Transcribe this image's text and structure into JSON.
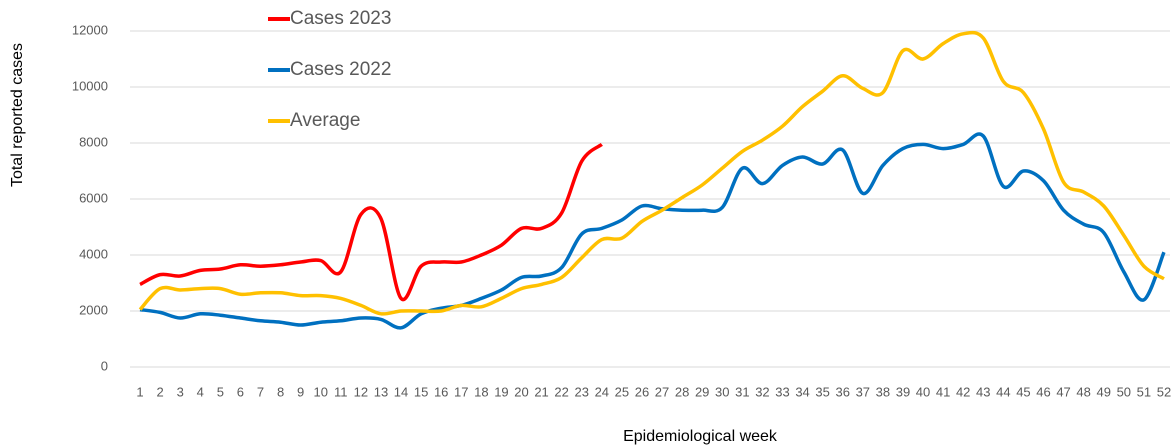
{
  "chart_data": {
    "type": "line",
    "xlabel": "Epidemiological week",
    "ylabel": "Total reported cases",
    "categories": [
      1,
      2,
      3,
      4,
      5,
      6,
      7,
      8,
      9,
      10,
      11,
      12,
      13,
      14,
      15,
      16,
      17,
      18,
      19,
      20,
      21,
      22,
      23,
      24,
      25,
      26,
      27,
      28,
      29,
      30,
      31,
      32,
      33,
      34,
      35,
      36,
      37,
      38,
      39,
      40,
      41,
      42,
      43,
      44,
      45,
      46,
      47,
      48,
      49,
      50,
      51,
      52
    ],
    "series": [
      {
        "name": "Cases 2023",
        "color": "#ff0000",
        "values": [
          2950,
          3300,
          3250,
          3450,
          3500,
          3650,
          3600,
          3650,
          3750,
          3800,
          3400,
          5450,
          5300,
          2450,
          3600,
          3750,
          3750,
          4000,
          4350,
          4950,
          4950,
          5500,
          7350,
          7950,
          null,
          null,
          null,
          null,
          null,
          null,
          null,
          null,
          null,
          null,
          null,
          null,
          null,
          null,
          null,
          null,
          null,
          null,
          null,
          null,
          null,
          null,
          null,
          null,
          null,
          null,
          null,
          null
        ]
      },
      {
        "name": "Cases 2022",
        "color": "#0070c0",
        "values": [
          2050,
          1950,
          1750,
          1900,
          1850,
          1750,
          1650,
          1600,
          1500,
          1600,
          1650,
          1750,
          1700,
          1400,
          1900,
          2100,
          2200,
          2450,
          2750,
          3200,
          3250,
          3550,
          4750,
          4950,
          5250,
          5750,
          5650,
          5600,
          5600,
          5700,
          7100,
          6550,
          7200,
          7500,
          7250,
          7750,
          6200,
          7200,
          7800,
          7950,
          7800,
          7950,
          8250,
          6450,
          7000,
          6650,
          5600,
          5100,
          4800,
          3400,
          2400,
          4100
        ]
      },
      {
        "name": "Average",
        "color": "#ffc000",
        "values": [
          2050,
          2800,
          2750,
          2800,
          2800,
          2600,
          2650,
          2650,
          2550,
          2550,
          2450,
          2200,
          1900,
          2000,
          2000,
          2000,
          2200,
          2150,
          2450,
          2800,
          2950,
          3200,
          3900,
          4550,
          4600,
          5200,
          5600,
          6050,
          6500,
          7100,
          7700,
          8100,
          8600,
          9300,
          9850,
          10400,
          9950,
          9800,
          11300,
          11000,
          11550,
          11900,
          11750,
          10200,
          9800,
          8500,
          6600,
          6250,
          5750,
          4700,
          3600,
          3150
        ]
      }
    ],
    "ylim": [
      0,
      12000
    ],
    "yticks": [
      0,
      2000,
      4000,
      6000,
      8000,
      10000,
      12000
    ],
    "grid": true,
    "legend": "top-left",
    "smooth": true
  }
}
